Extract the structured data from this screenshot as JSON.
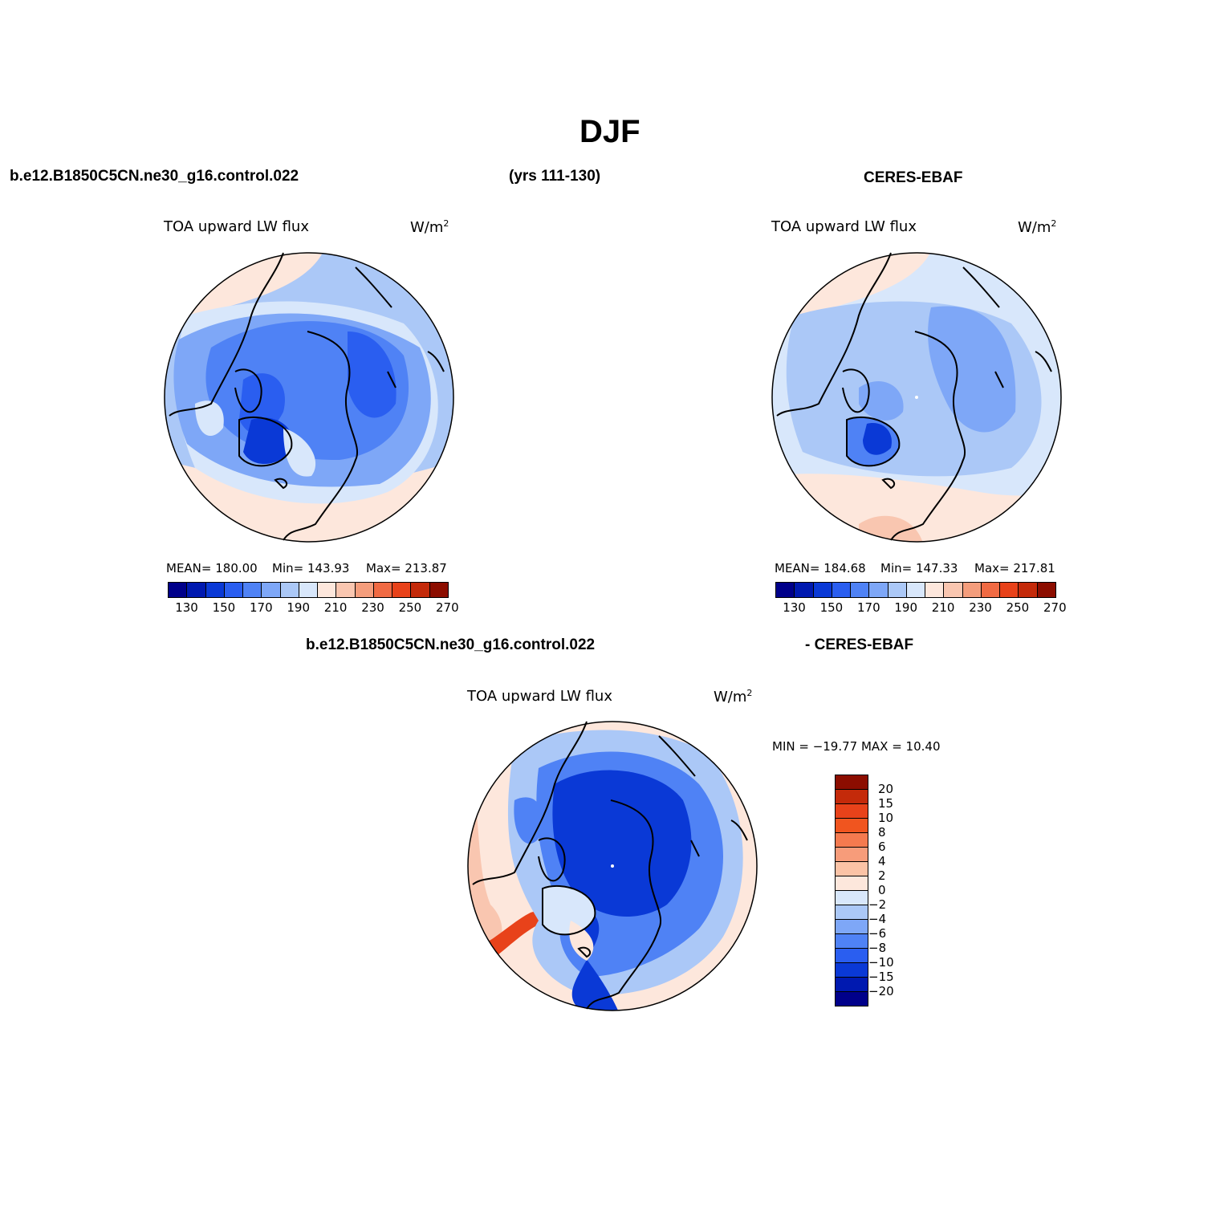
{
  "title": "DJF",
  "header": {
    "case": "b.e12.B1850C5CN.ne30_g16.control.022",
    "years": "(yrs 111-130)",
    "obs": "CERES-EBAF",
    "diff_case": "b.e12.B1850C5CN.ne30_g16.control.022",
    "diff_obs": "- CERES-EBAF"
  },
  "panels": {
    "model": {
      "field": "TOA upward LW flux",
      "units": "W/m",
      "units_sup": "2",
      "mean": "MEAN= 180.00",
      "min": "Min= 143.93",
      "max": "Max= 213.87"
    },
    "obs": {
      "field": "TOA upward LW flux",
      "units": "W/m",
      "units_sup": "2",
      "mean": "MEAN= 184.68",
      "min": "Min= 147.33",
      "max": "Max= 217.81"
    },
    "diff": {
      "field": "TOA upward LW flux",
      "units": "W/m",
      "units_sup": "2",
      "minmax": "MIN = −19.77 MAX =   10.40"
    }
  },
  "colorbar_abs": {
    "ticks": [
      "130",
      "150",
      "170",
      "190",
      "210",
      "230",
      "250",
      "270"
    ],
    "colors": [
      "#00008a",
      "#0019b0",
      "#0a39d6",
      "#2a5ef0",
      "#4f82f5",
      "#7ea7f7",
      "#abc8f7",
      "#d8e7fb",
      "#fde7dc",
      "#f9c6b0",
      "#f49d7c",
      "#f06a43",
      "#e8421a",
      "#c42a0a",
      "#8c0d00"
    ]
  },
  "colorbar_diff": {
    "ticks": [
      "20",
      "15",
      "10",
      "8",
      "6",
      "4",
      "2",
      "0",
      "−2",
      "−4",
      "−6",
      "−8",
      "−10",
      "−15",
      "−20"
    ],
    "colors": [
      "#8c0d00",
      "#c42a0a",
      "#e8421a",
      "#f0551f",
      "#f47a4f",
      "#f79c7a",
      "#fbc3a6",
      "#fde7dc",
      "#d8e7fb",
      "#abc8f7",
      "#7ea7f7",
      "#4f82f5",
      "#2a5ef0",
      "#0a39d6",
      "#0019b0",
      "#00008a"
    ]
  }
}
